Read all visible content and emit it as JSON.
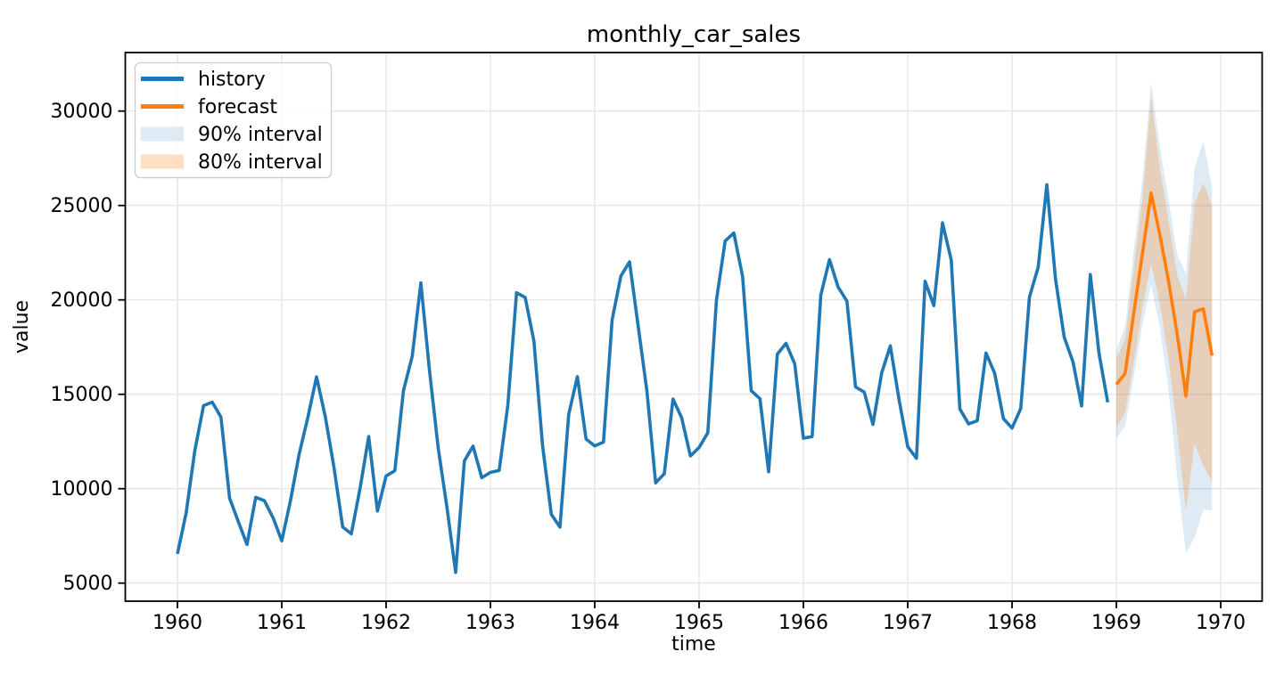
{
  "figure": {
    "title": "monthly_car_sales",
    "x_axis_label": "time",
    "y_axis_label": "value"
  },
  "legend": {
    "items": [
      {
        "label": "history",
        "swatch": "line",
        "color": "#1f77b4"
      },
      {
        "label": "forecast",
        "swatch": "line",
        "color": "#ff7f0e"
      },
      {
        "label": "90% interval",
        "swatch": "patch",
        "color": "rgba(31,119,180,0.15)"
      },
      {
        "label": "80% interval",
        "swatch": "patch",
        "color": "rgba(255,127,14,0.25)"
      }
    ]
  },
  "colors": {
    "history": "#1f77b4",
    "forecast": "#ff7f0e",
    "interval_90_fill": "rgba(31,119,180,0.15)",
    "interval_80_fill": "rgba(255,127,14,0.25)",
    "grid": "#e8e8e8",
    "spine": "#000000",
    "background": "#ffffff"
  },
  "chart_data": {
    "type": "line",
    "title": "monthly_car_sales",
    "xlabel": "time",
    "ylabel": "value",
    "grid": true,
    "legend_position": "upper-left",
    "x_ticks": [
      1960,
      1961,
      1962,
      1963,
      1964,
      1965,
      1966,
      1967,
      1968,
      1969,
      1970
    ],
    "y_ticks": [
      5000,
      10000,
      15000,
      20000,
      25000,
      30000
    ],
    "xlim": [
      1959.5,
      1970.397
    ],
    "ylim": [
      4043,
      33100
    ],
    "series": [
      {
        "name": "history",
        "color": "#1f77b4",
        "start_year": 1960,
        "start_month": 1,
        "values": [
          6550,
          8728,
          12026,
          14395,
          14587,
          13791,
          9498,
          8251,
          7049,
          9545,
          9364,
          8456,
          7237,
          9374,
          11837,
          13784,
          15926,
          13821,
          11143,
          7975,
          7610,
          10015,
          12759,
          8816,
          10677,
          10947,
          15200,
          17010,
          20900,
          16205,
          12143,
          8997,
          5568,
          11474,
          12256,
          10583,
          10862,
          10965,
          14405,
          20379,
          20128,
          17816,
          12268,
          8642,
          7962,
          13932,
          15936,
          12628,
          12267,
          12470,
          18944,
          21259,
          22015,
          18581,
          15175,
          10306,
          10792,
          14752,
          13754,
          11738,
          12181,
          12965,
          19990,
          23125,
          23541,
          21247,
          15189,
          14767,
          10895,
          17130,
          17697,
          16611,
          12674,
          12760,
          20249,
          22135,
          20677,
          19933,
          15388,
          15113,
          13401,
          16135,
          17562,
          14720,
          12225,
          11608,
          20985,
          19692,
          24081,
          22114,
          14220,
          13434,
          13598,
          17187,
          16119,
          13713,
          13210,
          14251,
          20139,
          21725,
          26099,
          21084,
          18024,
          16722,
          14385,
          21342,
          17180,
          14577
        ]
      },
      {
        "name": "forecast",
        "color": "#ff7f0e",
        "start_year": 1969,
        "start_month": 1,
        "values": [
          15520,
          16100,
          19300,
          22470,
          25660,
          23430,
          21000,
          18150,
          14900,
          19370,
          19530,
          17050
        ]
      }
    ],
    "intervals": [
      {
        "name": "90% interval",
        "fill": "rgba(31,119,180,0.15)",
        "start_year": 1969,
        "start_month": 1,
        "lower": [
          12690,
          13300,
          15900,
          18700,
          20800,
          18500,
          15300,
          10500,
          6600,
          7400,
          8900,
          8840
        ],
        "upper": [
          17330,
          18600,
          22600,
          26400,
          31500,
          28100,
          25300,
          22400,
          21400,
          27000,
          28400,
          26000
        ]
      },
      {
        "name": "80% interval",
        "fill": "rgba(255,127,14,0.25)",
        "start_year": 1969,
        "start_month": 1,
        "lower": [
          13240,
          14000,
          16700,
          19600,
          21900,
          19800,
          16900,
          13000,
          8840,
          12400,
          11200,
          10400
        ],
        "upper": [
          16900,
          17900,
          21700,
          25400,
          30770,
          27000,
          24200,
          21300,
          20000,
          25100,
          26200,
          25000
        ]
      }
    ]
  }
}
